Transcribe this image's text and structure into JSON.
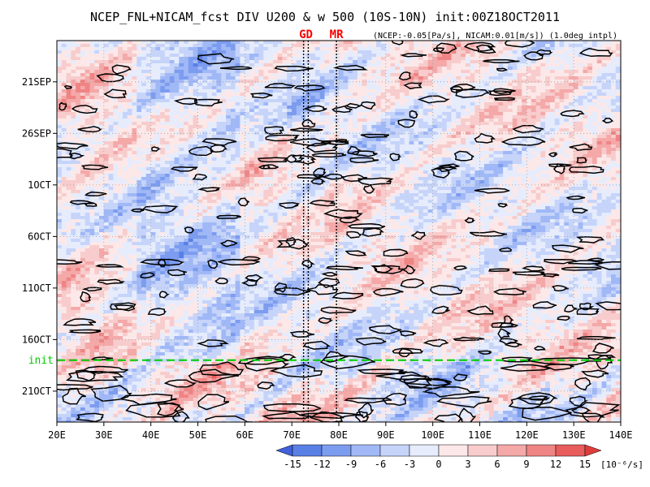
{
  "chart_data": {
    "type": "heatmap",
    "title": "NCEP_FNL+NICAM_fcst DIV U200 & w 500 (10S-10N) init:00Z18OCT2011",
    "subtitle": "(NCEP:-0.05[Pa/s], NICAM:0.01[m/s]) (1.0deg intpl)",
    "x_ticks": [
      "20E",
      "30E",
      "40E",
      "50E",
      "60E",
      "70E",
      "80E",
      "90E",
      "100E",
      "110E",
      "120E",
      "130E",
      "140E"
    ],
    "x_tick_values": [
      20,
      30,
      40,
      50,
      60,
      70,
      80,
      90,
      100,
      110,
      120,
      130,
      140
    ],
    "xlim": [
      20,
      140
    ],
    "y_ticks": [
      "21SEP",
      "26SEP",
      "1OCT",
      "6OCT",
      "11OCT",
      "16OCT",
      "21OCT"
    ],
    "y_tick_values": [
      "2011-09-21",
      "2011-09-26",
      "2011-10-01",
      "2011-10-06",
      "2011-10-11",
      "2011-10-16",
      "2011-10-21"
    ],
    "ylim": [
      "2011-09-17",
      "2011-10-24"
    ],
    "y_direction": "time increases downward",
    "init_line": {
      "label": "init",
      "date": "2011-10-18",
      "color": "#00cc00"
    },
    "markers": [
      {
        "label": "GD",
        "lon": [
          72.5,
          73.5
        ],
        "color": "#ff0000"
      },
      {
        "label": "MR",
        "lon": [
          79.5
        ],
        "color": "#ff0000"
      }
    ],
    "colorbar": {
      "ticks": [
        "-15",
        "-12",
        "-9",
        "-6",
        "-3",
        "0",
        "3",
        "6",
        "9",
        "12",
        "15"
      ],
      "unit": "[10⁻⁶/s]",
      "colors": [
        "#4060dc",
        "#5a80e6",
        "#7c9cf0",
        "#a0b8f6",
        "#c6d4fa",
        "#e6ecfc",
        "#fce8e8",
        "#f8cccc",
        "#f4a8a8",
        "#ef8484",
        "#e85c5c",
        "#e03c3c"
      ]
    }
  }
}
